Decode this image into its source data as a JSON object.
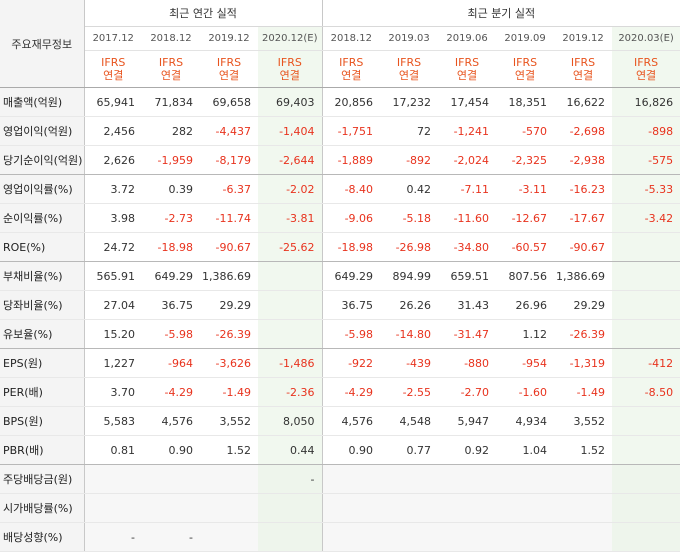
{
  "corner_label": "주요재무정보",
  "annual_title": "최근 연간 실적",
  "quarter_title": "최근 분기 실적",
  "periods": [
    "2017.12",
    "2018.12",
    "2019.12",
    "2020.12(E)",
    "2018.12",
    "2019.03",
    "2019.06",
    "2019.09",
    "2019.12",
    "2020.03(E)"
  ],
  "ifrs": "IFRS",
  "consol": "연결",
  "rows": [
    {
      "label": "매출액(억원)",
      "values": [
        "65,941",
        "71,834",
        "69,658",
        "69,403",
        "20,856",
        "17,232",
        "17,454",
        "18,351",
        "16,622",
        "16,826"
      ]
    },
    {
      "label": "영업이익(억원)",
      "values": [
        "2,456",
        "282",
        "-4,437",
        "-1,404",
        "-1,751",
        "72",
        "-1,241",
        "-570",
        "-2,698",
        "-898"
      ]
    },
    {
      "label": "당기순이익(억원)",
      "values": [
        "2,626",
        "-1,959",
        "-8,179",
        "-2,644",
        "-1,889",
        "-892",
        "-2,024",
        "-2,325",
        "-2,938",
        "-575"
      ]
    },
    {
      "label": "영업이익률(%)",
      "values": [
        "3.72",
        "0.39",
        "-6.37",
        "-2.02",
        "-8.40",
        "0.42",
        "-7.11",
        "-3.11",
        "-16.23",
        "-5.33"
      ]
    },
    {
      "label": "순이익률(%)",
      "values": [
        "3.98",
        "-2.73",
        "-11.74",
        "-3.81",
        "-9.06",
        "-5.18",
        "-11.60",
        "-12.67",
        "-17.67",
        "-3.42"
      ]
    },
    {
      "label": "ROE(%)",
      "values": [
        "24.72",
        "-18.98",
        "-90.67",
        "-25.62",
        "-18.98",
        "-26.98",
        "-34.80",
        "-60.57",
        "-90.67",
        ""
      ]
    },
    {
      "label": "부채비율(%)",
      "values": [
        "565.91",
        "649.29",
        "1,386.69",
        "",
        "649.29",
        "894.99",
        "659.51",
        "807.56",
        "1,386.69",
        ""
      ]
    },
    {
      "label": "당좌비율(%)",
      "values": [
        "27.04",
        "36.75",
        "29.29",
        "",
        "36.75",
        "26.26",
        "31.43",
        "26.96",
        "29.29",
        ""
      ]
    },
    {
      "label": "유보율(%)",
      "values": [
        "15.20",
        "-5.98",
        "-26.39",
        "",
        "-5.98",
        "-14.80",
        "-31.47",
        "1.12",
        "-26.39",
        ""
      ]
    },
    {
      "label": "EPS(원)",
      "values": [
        "1,227",
        "-964",
        "-3,626",
        "-1,486",
        "-922",
        "-439",
        "-880",
        "-954",
        "-1,319",
        "-412"
      ]
    },
    {
      "label": "PER(배)",
      "values": [
        "3.70",
        "-4.29",
        "-1.49",
        "-2.36",
        "-4.29",
        "-2.55",
        "-2.70",
        "-1.60",
        "-1.49",
        "-8.50"
      ]
    },
    {
      "label": "BPS(원)",
      "values": [
        "5,583",
        "4,576",
        "3,552",
        "8,050",
        "4,576",
        "4,548",
        "5,947",
        "4,934",
        "3,552",
        ""
      ]
    },
    {
      "label": "PBR(배)",
      "values": [
        "0.81",
        "0.90",
        "1.52",
        "0.44",
        "0.90",
        "0.77",
        "0.92",
        "1.04",
        "1.52",
        ""
      ]
    },
    {
      "label": "주당배당금(원)",
      "values": [
        "",
        "",
        "",
        "-",
        "",
        "",
        "",
        "",
        "",
        ""
      ]
    },
    {
      "label": "시가배당률(%)",
      "values": [
        "",
        "",
        "",
        "",
        "",
        "",
        "",
        "",
        "",
        ""
      ]
    },
    {
      "label": "배당성향(%)",
      "values": [
        "-",
        "-",
        "",
        "",
        "",
        "",
        "",
        "",
        "",
        ""
      ]
    }
  ]
}
